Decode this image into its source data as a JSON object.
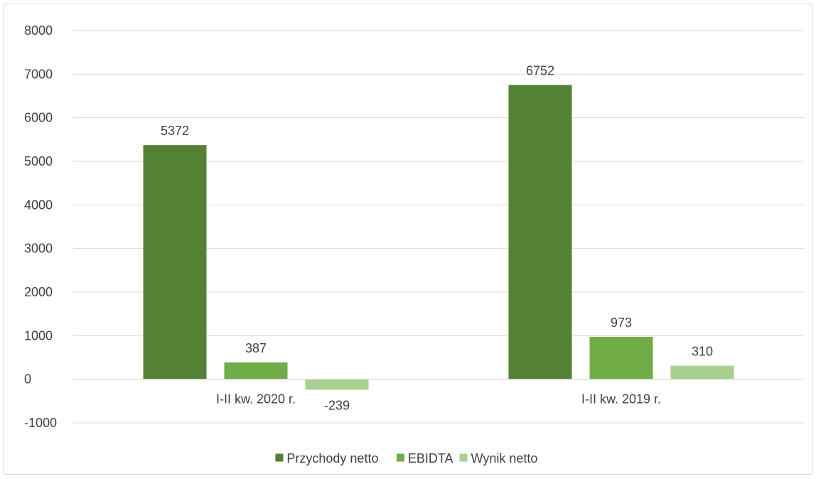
{
  "chart_data": {
    "type": "bar",
    "categories": [
      "I-II kw. 2020 r.",
      "I-II kw. 2019 r."
    ],
    "series": [
      {
        "name": "Przychody netto",
        "values": [
          5372,
          6752
        ],
        "color": "#548235"
      },
      {
        "name": "EBIDTA",
        "values": [
          387,
          973
        ],
        "color": "#70ad47"
      },
      {
        "name": "Wynik netto",
        "values": [
          -239,
          310
        ],
        "color": "#a9d08e"
      }
    ],
    "ylim": [
      -1000,
      8000
    ],
    "yticks": [
      8000,
      7000,
      6000,
      5000,
      4000,
      3000,
      2000,
      1000,
      0,
      -1000
    ],
    "grid": true,
    "legend_position": "bottom",
    "data_labels": true
  }
}
